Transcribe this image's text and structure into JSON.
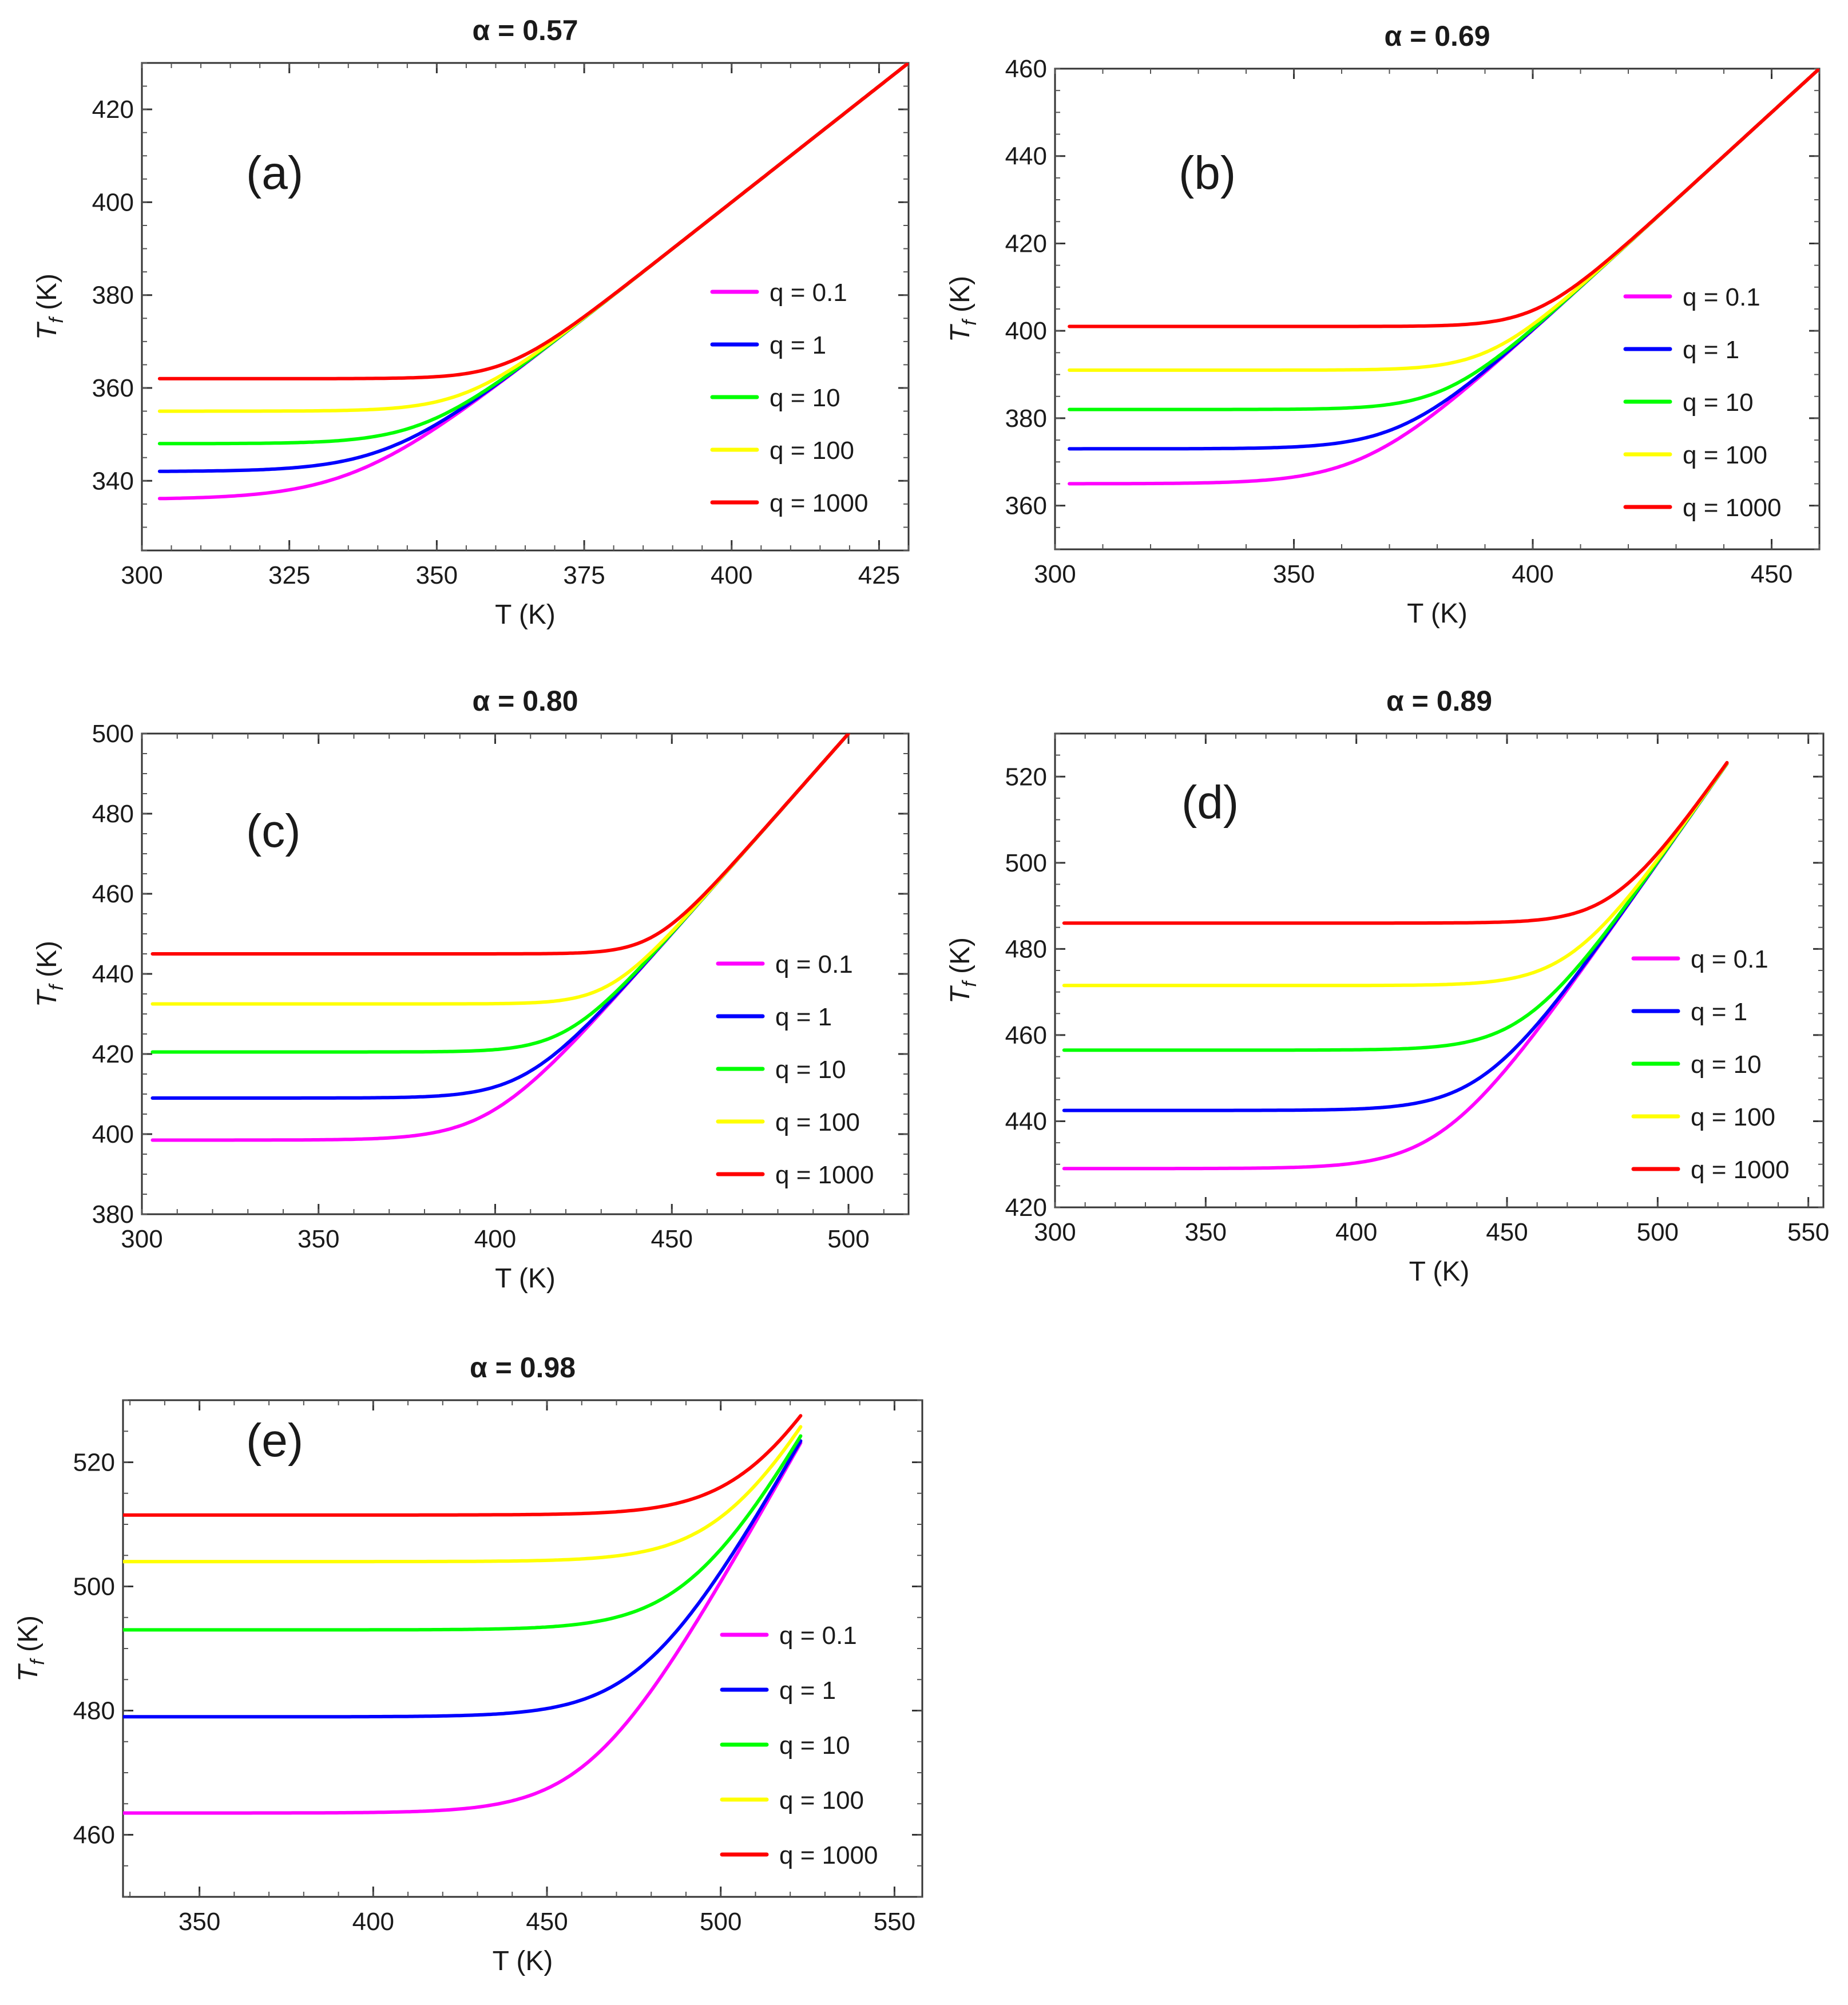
{
  "legend_labels": [
    "q = 0.1",
    "q = 1",
    "q = 10",
    "q = 100",
    "q = 1000"
  ],
  "series_colors": [
    "#ff00ff",
    "#0000ff",
    "#00ff00",
    "#ffff00",
    "#ff0000"
  ],
  "chart_data": [
    {
      "id": "a",
      "type": "line",
      "title": "α = 0.57",
      "panel_label": "(a)",
      "xlabel": "T (K)",
      "ylabel": "Tf (K)",
      "xlim": [
        300,
        430
      ],
      "ylim": [
        325,
        430
      ],
      "xticks": [
        300,
        325,
        350,
        375,
        400,
        425
      ],
      "yticks": [
        340,
        360,
        380,
        400,
        420
      ],
      "t_end": 430,
      "t_start": 303,
      "legend": "center-right",
      "series": [
        {
          "name": "q = 0.1",
          "T0": 336,
          "k": 8.5
        },
        {
          "name": "q = 1",
          "T0": 342,
          "k": 7.5
        },
        {
          "name": "q = 10",
          "T0": 348,
          "k": 6.5
        },
        {
          "name": "q = 100",
          "T0": 355,
          "k": 5.8
        },
        {
          "name": "q = 1000",
          "T0": 362,
          "k": 5.0
        }
      ]
    },
    {
      "id": "b",
      "type": "line",
      "title": "α = 0.69",
      "panel_label": "(b)",
      "xlabel": "T (K)",
      "ylabel": "Tf (K)",
      "xlim": [
        300,
        460
      ],
      "ylim": [
        350,
        460
      ],
      "xticks": [
        300,
        350,
        400,
        450
      ],
      "yticks": [
        360,
        380,
        400,
        420,
        440,
        460
      ],
      "t_end": 460,
      "t_start": 303,
      "legend": "center-right",
      "series": [
        {
          "name": "q = 0.1",
          "T0": 365,
          "k": 9
        },
        {
          "name": "q = 1",
          "T0": 373,
          "k": 8
        },
        {
          "name": "q = 10",
          "T0": 382,
          "k": 7
        },
        {
          "name": "q = 100",
          "T0": 391,
          "k": 6.5
        },
        {
          "name": "q = 1000",
          "T0": 401,
          "k": 6
        }
      ]
    },
    {
      "id": "c",
      "type": "line",
      "title": "α = 0.80",
      "panel_label": "(c)",
      "xlabel": "T (K)",
      "ylabel": "Tf (K)",
      "xlim": [
        300,
        517
      ],
      "ylim": [
        380,
        500
      ],
      "xticks": [
        300,
        350,
        400,
        450,
        500
      ],
      "yticks": [
        380,
        400,
        420,
        440,
        460,
        480,
        500
      ],
      "t_end": 500,
      "t_start": 303,
      "legend": "lower-right",
      "series": [
        {
          "name": "q = 0.1",
          "T0": 398.5,
          "k": 10
        },
        {
          "name": "q = 1",
          "T0": 409,
          "k": 9
        },
        {
          "name": "q = 10",
          "T0": 420.5,
          "k": 8
        },
        {
          "name": "q = 100",
          "T0": 432.5,
          "k": 7
        },
        {
          "name": "q = 1000",
          "T0": 445,
          "k": 6.5
        }
      ]
    },
    {
      "id": "d",
      "type": "line",
      "title": "α = 0.89",
      "panel_label": "(d)",
      "xlabel": "T (K)",
      "ylabel": "Tf (K)",
      "xlim": [
        300,
        555
      ],
      "ylim": [
        420,
        530
      ],
      "xticks": [
        300,
        350,
        400,
        450,
        500,
        550
      ],
      "yticks": [
        420,
        440,
        460,
        480,
        500,
        520
      ],
      "t_end": 523,
      "t_start": 303,
      "legend": "lower-right",
      "series": [
        {
          "name": "q = 0.1",
          "T0": 429,
          "k": 13
        },
        {
          "name": "q = 1",
          "T0": 442.5,
          "k": 12
        },
        {
          "name": "q = 10",
          "T0": 456.5,
          "k": 11.5
        },
        {
          "name": "q = 100",
          "T0": 471.5,
          "k": 11
        },
        {
          "name": "q = 1000",
          "T0": 486,
          "k": 10
        }
      ]
    },
    {
      "id": "e",
      "type": "line",
      "title": "α = 0.98",
      "panel_label": "(e)",
      "xlabel": "T (K)",
      "ylabel": "Tf (K)",
      "xlim": [
        328,
        558
      ],
      "ylim": [
        450,
        530
      ],
      "xticks": [
        350,
        400,
        450,
        500,
        550
      ],
      "yticks": [
        460,
        480,
        500,
        520
      ],
      "t_end": 523,
      "t_start": 328,
      "legend": "lower-right",
      "series": [
        {
          "name": "q = 0.1",
          "T0": 463.5,
          "k": 13
        },
        {
          "name": "q = 1",
          "T0": 479,
          "k": 13
        },
        {
          "name": "q = 10",
          "T0": 493,
          "k": 13
        },
        {
          "name": "q = 100",
          "T0": 504,
          "k": 13
        },
        {
          "name": "q = 1000",
          "T0": 511.5,
          "k": 13
        }
      ]
    }
  ]
}
